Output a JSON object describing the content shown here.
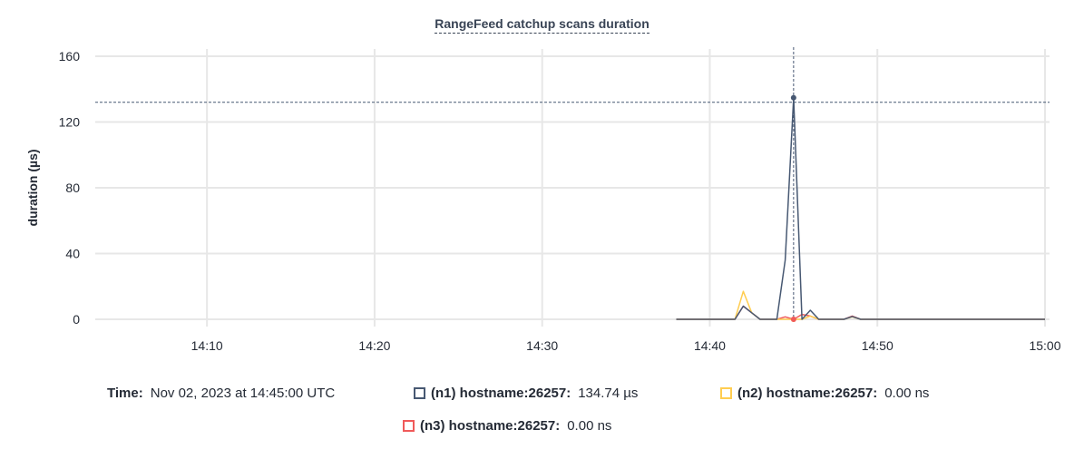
{
  "chart_data": {
    "type": "line",
    "title": "RangeFeed catchup scans duration",
    "ylabel": "duration (µs)",
    "xlabel": "",
    "ylim": [
      0,
      160
    ],
    "yticks": [
      "0",
      "40",
      "80",
      "120",
      "160"
    ],
    "xticks": [
      "14:10",
      "14:20",
      "14:30",
      "14:40",
      "14:50",
      "15:00"
    ],
    "xlim": [
      "14:03:20",
      "15:00:00"
    ],
    "grid": true,
    "x": [
      "14:38:00",
      "14:38:30",
      "14:39:00",
      "14:39:30",
      "14:40:00",
      "14:40:30",
      "14:41:00",
      "14:41:30",
      "14:42:00",
      "14:42:30",
      "14:43:00",
      "14:43:30",
      "14:44:00",
      "14:44:30",
      "14:45:00",
      "14:45:30",
      "14:46:00",
      "14:46:30",
      "14:47:00",
      "14:47:30",
      "14:48:00",
      "14:48:30",
      "14:49:00",
      "14:49:30",
      "14:50:00",
      "14:50:30",
      "14:51:00",
      "14:51:30",
      "14:52:00",
      "14:52:30",
      "14:53:00",
      "14:53:30",
      "14:54:00",
      "14:54:30",
      "14:55:00",
      "14:55:30",
      "14:56:00",
      "14:56:30",
      "14:57:00",
      "14:57:30",
      "14:58:00",
      "14:58:30",
      "14:59:00",
      "14:59:30",
      "15:00:00"
    ],
    "series": [
      {
        "name": "(n1) hostname:26257",
        "color": "#475872",
        "values": [
          0,
          0,
          0,
          0,
          0,
          0,
          0,
          0,
          8,
          4,
          0,
          0,
          0,
          36,
          134.74,
          0,
          5.5,
          0,
          0,
          0,
          0,
          1.7,
          0,
          0,
          0,
          0,
          0,
          0,
          0,
          0,
          0,
          0,
          0,
          0,
          0,
          0,
          0,
          0,
          0,
          0,
          0,
          0,
          0,
          0,
          0
        ]
      },
      {
        "name": "(n2) hostname:26257",
        "color": "#ffcd51",
        "values": [
          0,
          0,
          0,
          0,
          0,
          0,
          0,
          0,
          17,
          4,
          0,
          0,
          0,
          0,
          0,
          0,
          2,
          0,
          0,
          0,
          0,
          1.5,
          0,
          0,
          0,
          0,
          0,
          0,
          0,
          0,
          0,
          0,
          0,
          0,
          0,
          0,
          0,
          0,
          0,
          0,
          0,
          0,
          0,
          0,
          0
        ]
      },
      {
        "name": "(n3) hostname:26257",
        "color": "#f05a5a",
        "values": [
          0,
          0,
          0,
          0,
          0,
          0,
          0,
          0,
          8,
          4,
          0,
          0,
          0,
          1.5,
          0,
          3,
          2,
          0,
          0,
          0,
          0,
          2,
          0,
          0,
          0,
          0,
          0,
          0,
          0,
          0,
          0,
          0,
          0,
          0,
          0,
          0,
          0,
          0,
          0,
          0,
          0,
          0,
          0,
          0,
          0
        ]
      }
    ],
    "hover": {
      "x": "14:45:00",
      "y": 132
    }
  },
  "legend": {
    "time_label": "Time:",
    "time_value": "Nov 02, 2023 at 14:45:00 UTC",
    "items": [
      {
        "label": "(n1) hostname:26257:",
        "value": "134.74 µs",
        "color": "#475872"
      },
      {
        "label": "(n2) hostname:26257:",
        "value": "0.00 ns",
        "color": "#ffcd51"
      },
      {
        "label": "(n3) hostname:26257:",
        "value": "0.00 ns",
        "color": "#f05a5a"
      }
    ]
  }
}
